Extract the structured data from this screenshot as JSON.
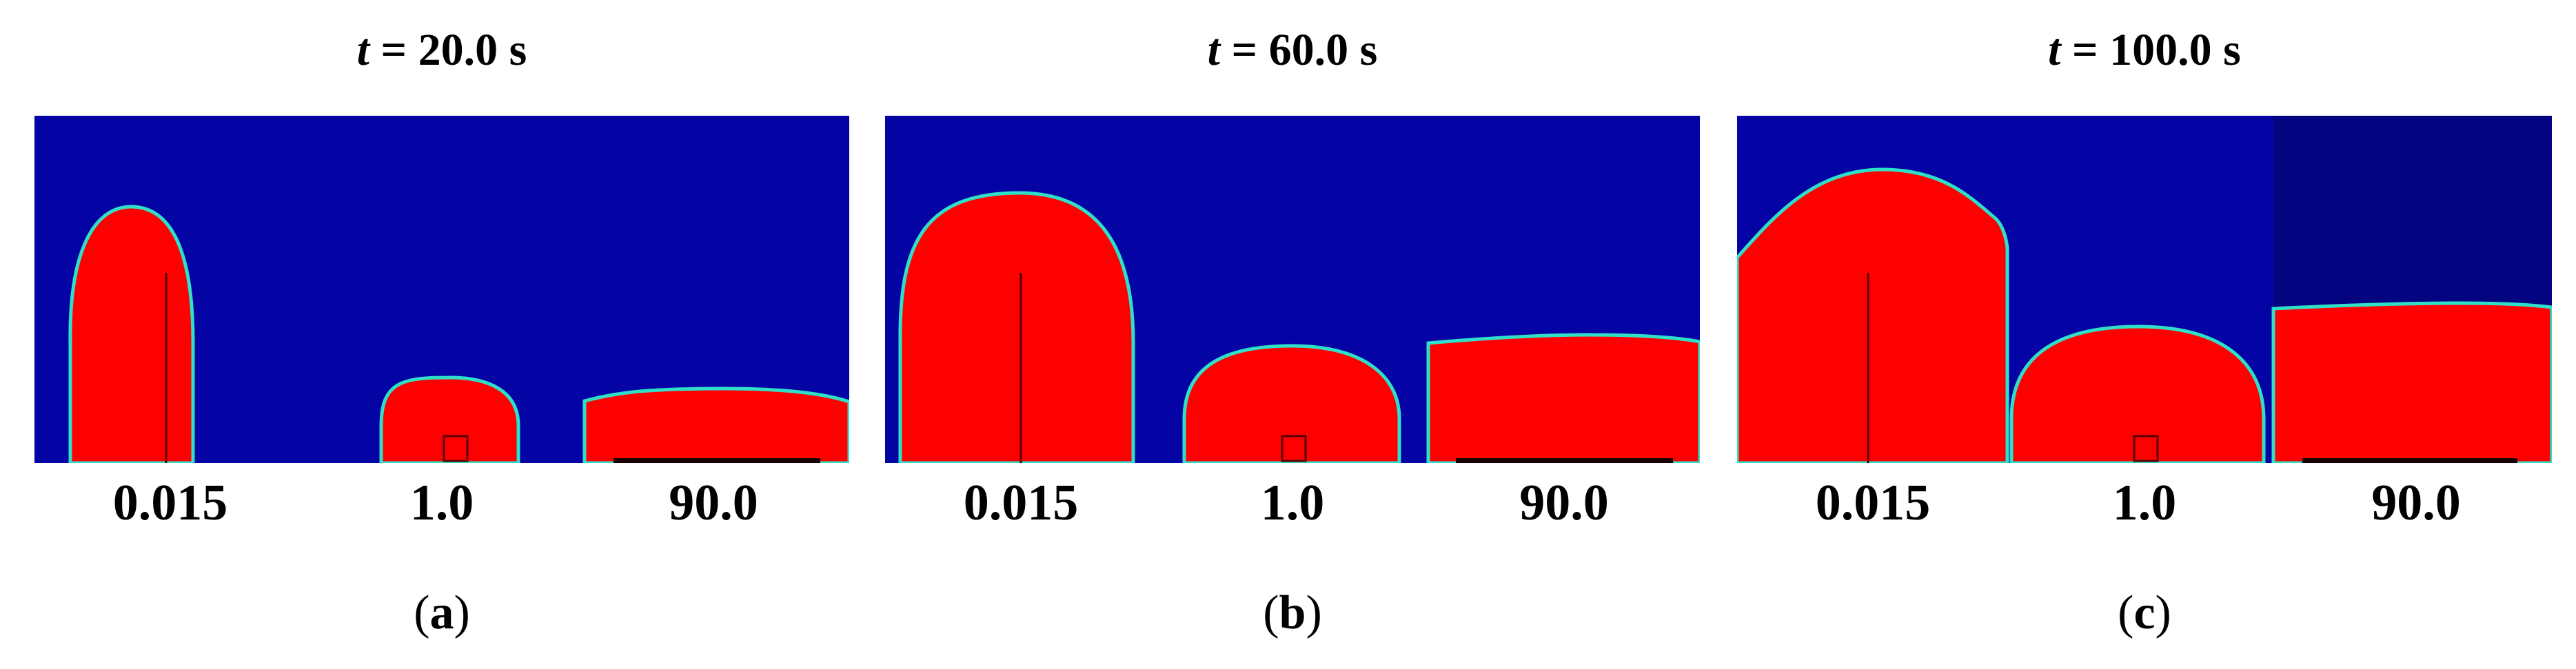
{
  "colors": {
    "background_fluid": "#0404a4",
    "background_dark": "#03047f",
    "droplet": "#ff0000",
    "interface": "#2fe0c8",
    "text": "#000000"
  },
  "panels": [
    {
      "title_var": "t",
      "title_rest": " = 20.0 s",
      "letter": "a",
      "categories": [
        "0.015",
        "1.0",
        "90.0"
      ]
    },
    {
      "title_var": "t",
      "title_rest": " = 60.0 s",
      "letter": "b",
      "categories": [
        "0.015",
        "1.0",
        "90.0"
      ]
    },
    {
      "title_var": "t",
      "title_rest": " = 100.0 s",
      "letter": "c",
      "categories": [
        "0.015",
        "1.0",
        "90.0"
      ]
    }
  ]
}
